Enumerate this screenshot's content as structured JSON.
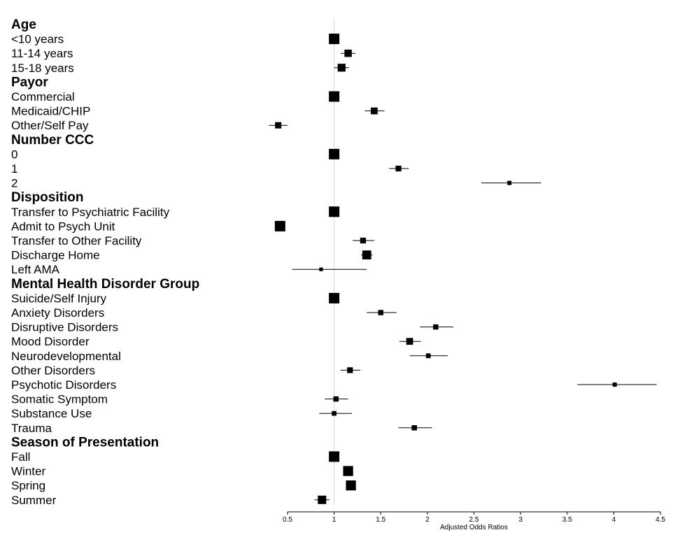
{
  "chart_data": {
    "type": "forest",
    "xlabel": "Adjusted Odds Ratios",
    "xlim": [
      0.5,
      4.5
    ],
    "ticks": [
      0.5,
      1,
      1.5,
      2,
      2.5,
      3,
      3.5,
      4,
      4.5
    ],
    "tick_labels": [
      "0.5",
      "1",
      "1.5",
      "2",
      "2.5",
      "3",
      "3.5",
      "4",
      "4.5"
    ],
    "reference_line": 1,
    "grid": false,
    "colors": {
      "marker": "#000000",
      "reference_line": "#d3d3d3"
    },
    "rows": [
      {
        "kind": "group",
        "label": "Age"
      },
      {
        "kind": "item",
        "label": "<10 years",
        "or": 1.0,
        "lo": 1.0,
        "hi": 1.0,
        "weight": 1.0
      },
      {
        "kind": "item",
        "label": "11-14 years",
        "or": 1.15,
        "lo": 1.07,
        "hi": 1.23,
        "weight": 0.7
      },
      {
        "kind": "item",
        "label": "15-18 years",
        "or": 1.08,
        "lo": 1.0,
        "hi": 1.16,
        "weight": 0.75
      },
      {
        "kind": "group",
        "label": "Payor"
      },
      {
        "kind": "item",
        "label": "Commercial",
        "or": 1.0,
        "lo": 1.0,
        "hi": 1.0,
        "weight": 1.0
      },
      {
        "kind": "item",
        "label": "Medicaid/CHIP",
        "or": 1.43,
        "lo": 1.33,
        "hi": 1.54,
        "weight": 0.65
      },
      {
        "kind": "item",
        "label": "Other/Self Pay",
        "or": 0.4,
        "lo": 0.3,
        "hi": 0.5,
        "weight": 0.6
      },
      {
        "kind": "group",
        "label": "Number CCC"
      },
      {
        "kind": "item",
        "label": "0",
        "or": 1.0,
        "lo": 1.0,
        "hi": 1.0,
        "weight": 1.0
      },
      {
        "kind": "item",
        "label": "1",
        "or": 1.69,
        "lo": 1.59,
        "hi": 1.8,
        "weight": 0.55
      },
      {
        "kind": "item",
        "label": "2",
        "or": 2.88,
        "lo": 2.58,
        "hi": 3.22,
        "weight": 0.4
      },
      {
        "kind": "group",
        "label": "Disposition"
      },
      {
        "kind": "item",
        "label": "Transfer to Psychiatric Facility",
        "or": 1.0,
        "lo": 1.0,
        "hi": 1.0,
        "weight": 1.0
      },
      {
        "kind": "item",
        "label": "Admit to Psych Unit",
        "or": 0.42,
        "lo": 0.42,
        "hi": 0.42,
        "weight": 1.0
      },
      {
        "kind": "item",
        "label": "Transfer to Other Facility",
        "or": 1.31,
        "lo": 1.2,
        "hi": 1.43,
        "weight": 0.55
      },
      {
        "kind": "item",
        "label": "Discharge Home",
        "or": 1.35,
        "lo": 1.29,
        "hi": 1.41,
        "weight": 0.85
      },
      {
        "kind": "item",
        "label": "Left AMA",
        "or": 0.86,
        "lo": 0.55,
        "hi": 1.35,
        "weight": 0.35
      },
      {
        "kind": "group",
        "label": "Mental Health Disorder Group"
      },
      {
        "kind": "item",
        "label": "Suicide/Self Injury",
        "or": 1.0,
        "lo": 1.0,
        "hi": 1.0,
        "weight": 1.0
      },
      {
        "kind": "item",
        "label": "Anxiety Disorders",
        "or": 1.5,
        "lo": 1.35,
        "hi": 1.67,
        "weight": 0.5
      },
      {
        "kind": "item",
        "label": "Disruptive Disorders",
        "or": 2.09,
        "lo": 1.92,
        "hi": 2.28,
        "weight": 0.5
      },
      {
        "kind": "item",
        "label": "Mood Disorder",
        "or": 1.81,
        "lo": 1.7,
        "hi": 1.93,
        "weight": 0.65
      },
      {
        "kind": "item",
        "label": "Neurodevelopmental",
        "or": 2.01,
        "lo": 1.81,
        "hi": 2.22,
        "weight": 0.45
      },
      {
        "kind": "item",
        "label": "Other Disorders",
        "or": 1.17,
        "lo": 1.07,
        "hi": 1.28,
        "weight": 0.55
      },
      {
        "kind": "item",
        "label": "Psychotic Disorders",
        "or": 4.01,
        "lo": 3.61,
        "hi": 4.46,
        "weight": 0.4
      },
      {
        "kind": "item",
        "label": "Somatic Symptom",
        "or": 1.02,
        "lo": 0.9,
        "hi": 1.15,
        "weight": 0.5
      },
      {
        "kind": "item",
        "label": "Substance Use",
        "or": 1.0,
        "lo": 0.84,
        "hi": 1.19,
        "weight": 0.45
      },
      {
        "kind": "item",
        "label": "Trauma",
        "or": 1.86,
        "lo": 1.69,
        "hi": 2.05,
        "weight": 0.5
      },
      {
        "kind": "group",
        "label": "Season of Presentation"
      },
      {
        "kind": "item",
        "label": "Fall",
        "or": 1.0,
        "lo": 1.0,
        "hi": 1.0,
        "weight": 1.0
      },
      {
        "kind": "item",
        "label": "Winter",
        "or": 1.15,
        "lo": 1.1,
        "hi": 1.2,
        "weight": 0.95
      },
      {
        "kind": "item",
        "label": "Spring",
        "or": 1.18,
        "lo": 1.13,
        "hi": 1.23,
        "weight": 0.95
      },
      {
        "kind": "item",
        "label": "Summer",
        "or": 0.87,
        "lo": 0.79,
        "hi": 0.95,
        "weight": 0.8
      }
    ]
  }
}
